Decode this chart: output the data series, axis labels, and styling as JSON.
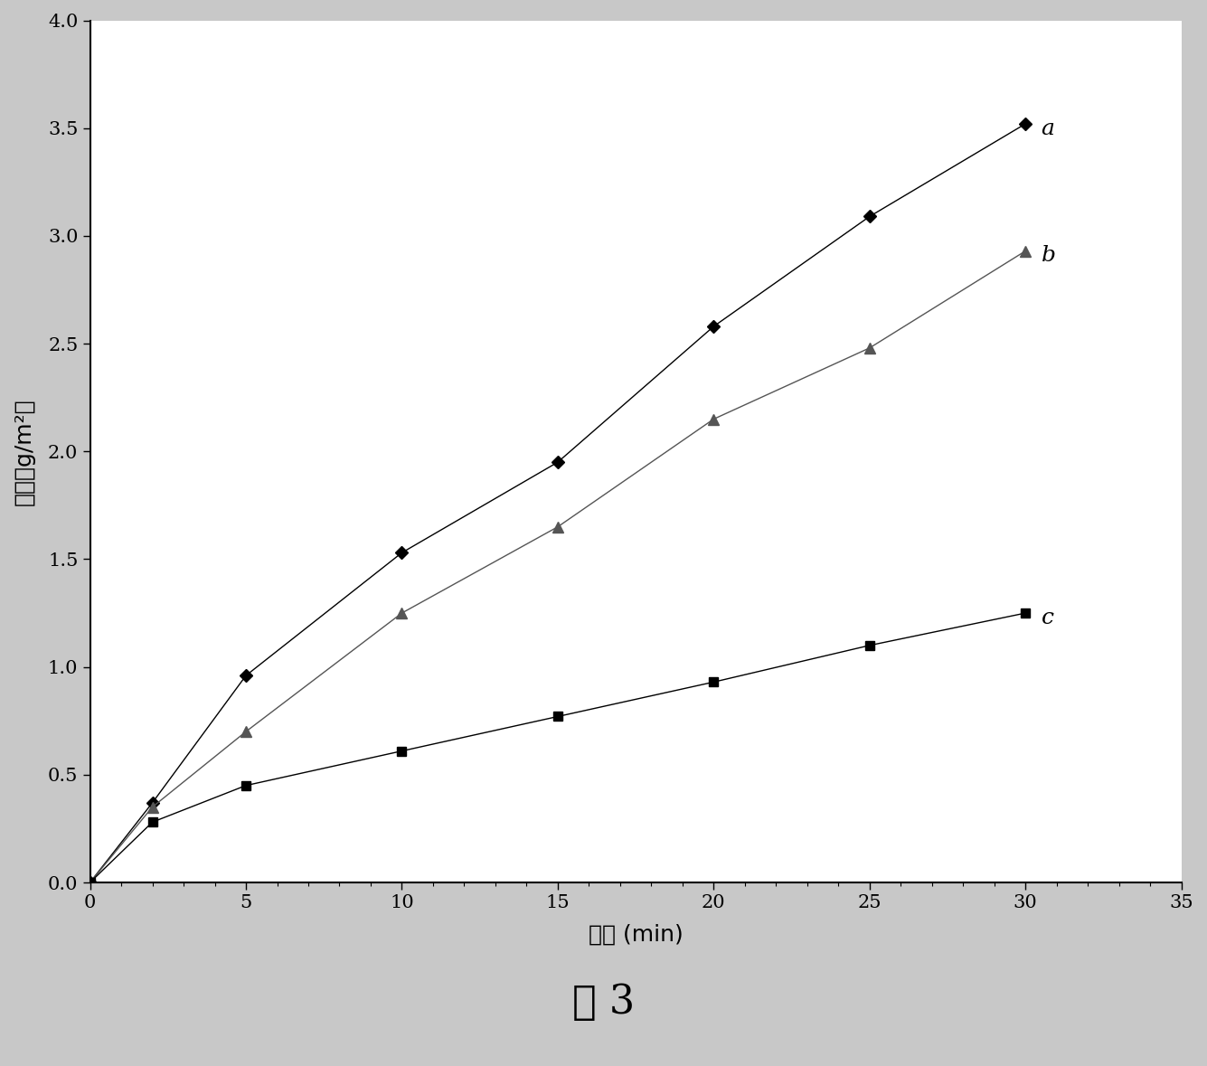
{
  "series_a": {
    "x": [
      0,
      2,
      5,
      10,
      15,
      20,
      25,
      30
    ],
    "y": [
      0,
      0.37,
      0.96,
      1.53,
      1.95,
      2.58,
      3.09,
      3.52
    ],
    "marker": "D",
    "color": "#000000",
    "label": "a",
    "markersize": 7
  },
  "series_b": {
    "x": [
      0,
      2,
      5,
      10,
      15,
      20,
      25,
      30
    ],
    "y": [
      0,
      0.35,
      0.7,
      1.25,
      1.65,
      2.15,
      2.48,
      2.93
    ],
    "marker": "^",
    "color": "#555555",
    "label": "b",
    "markersize": 8
  },
  "series_c": {
    "x": [
      0,
      2,
      5,
      10,
      15,
      20,
      25,
      30
    ],
    "y": [
      0,
      0.28,
      0.45,
      0.61,
      0.77,
      0.93,
      1.1,
      1.25
    ],
    "marker": "s",
    "color": "#000000",
    "label": "c",
    "markersize": 7
  },
  "xlabel": "时间 (min)",
  "ylabel": "失重（g/m²）",
  "xlim": [
    0,
    35
  ],
  "ylim": [
    0.0,
    4.0
  ],
  "xticks": [
    0,
    5,
    10,
    15,
    20,
    25,
    30,
    35
  ],
  "yticks": [
    0.0,
    0.5,
    1.0,
    1.5,
    2.0,
    2.5,
    3.0,
    3.5,
    4.0
  ],
  "figure_title": "图 3",
  "linewidth": 1.0,
  "fig_bg_color": "#c8c8c8",
  "ax_bg_color": "#ffffff"
}
